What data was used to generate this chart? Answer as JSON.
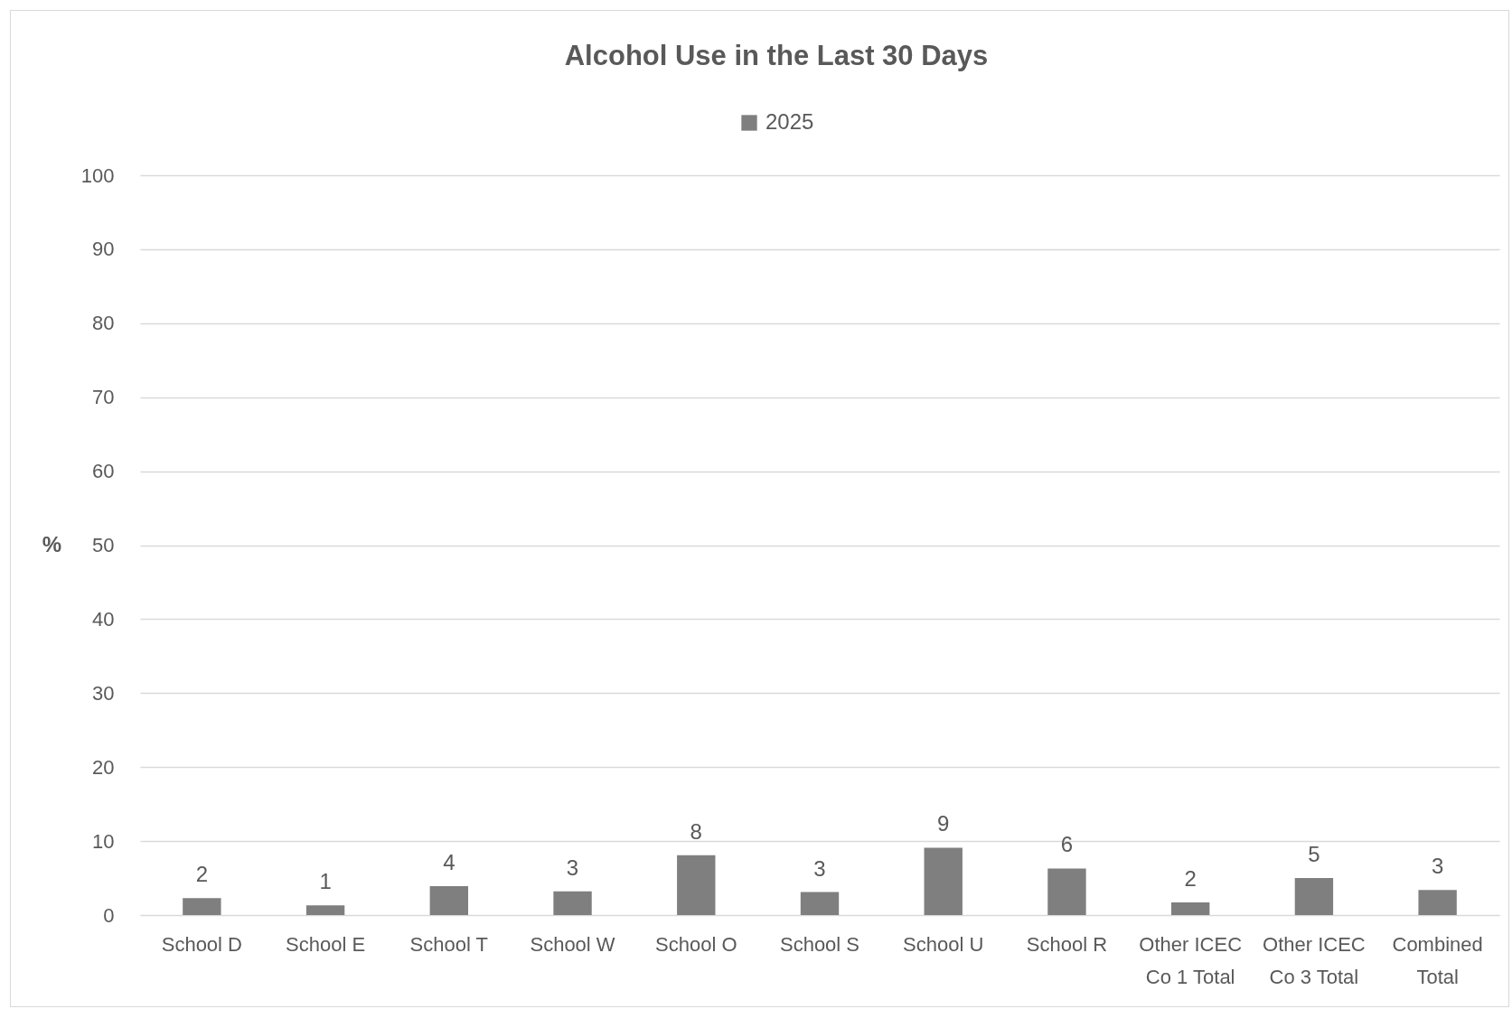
{
  "chart_data": {
    "type": "bar",
    "title": "Alcohol Use in the Last 30 Days",
    "ylabel": "%",
    "categories": [
      "School D",
      "School E",
      "School T",
      "School W",
      "School O",
      "School S",
      "School U",
      "School R",
      "Other ICEC Co 1 Total",
      "Other ICEC Co 3 Total",
      "Combined Total"
    ],
    "series": [
      {
        "name": "2025",
        "color": "#7f7f7f",
        "values": [
          2.3,
          1.3,
          3.9,
          3.2,
          8.1,
          3.1,
          9.1,
          6.3,
          1.7,
          5.0,
          3.4
        ],
        "value_labels": [
          "2",
          "1",
          "4",
          "3",
          "8",
          "3",
          "9",
          "6",
          "2",
          "5",
          "3"
        ]
      }
    ],
    "ylim": [
      0,
      100
    ],
    "yticks": [
      0,
      10,
      20,
      30,
      40,
      50,
      60,
      70,
      80,
      90,
      100
    ],
    "grid": "y",
    "legend": "top"
  }
}
